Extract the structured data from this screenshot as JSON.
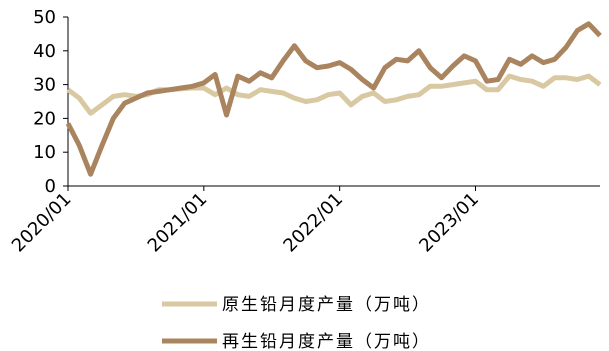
{
  "chart_data": {
    "type": "line",
    "title": "",
    "xlabel": "",
    "ylabel": "",
    "ylim": [
      0,
      50
    ],
    "y_ticks": [
      0,
      10,
      20,
      30,
      40,
      50
    ],
    "x_tick_labels": [
      "2020/01",
      "2021/01",
      "2022/01",
      "2023/01"
    ],
    "x": [
      "2020/01",
      "2020/02",
      "2020/03",
      "2020/04",
      "2020/05",
      "2020/06",
      "2020/07",
      "2020/08",
      "2020/09",
      "2020/10",
      "2020/11",
      "2020/12",
      "2021/01",
      "2021/02",
      "2021/03",
      "2021/04",
      "2021/05",
      "2021/06",
      "2021/07",
      "2021/08",
      "2021/09",
      "2021/10",
      "2021/11",
      "2021/12",
      "2022/01",
      "2022/02",
      "2022/03",
      "2022/04",
      "2022/05",
      "2022/06",
      "2022/07",
      "2022/08",
      "2022/09",
      "2022/10",
      "2022/11",
      "2022/12",
      "2023/01",
      "2023/02",
      "2023/03",
      "2023/04",
      "2023/05",
      "2023/06",
      "2023/07",
      "2023/08",
      "2023/09",
      "2023/10",
      "2023/11",
      "2023/12"
    ],
    "series": [
      {
        "name": "原生铅月度产量（万吨）",
        "color": "#d9c9a3",
        "values": [
          28.5,
          26,
          21.5,
          24,
          26.5,
          27,
          26.5,
          27,
          28.5,
          28.5,
          28.8,
          29,
          29,
          27,
          29,
          27,
          26.5,
          28.5,
          28,
          27.5,
          26,
          25,
          25.5,
          27,
          27.5,
          24,
          26.5,
          27.5,
          25,
          25.5,
          26.5,
          27,
          29.5,
          29.5,
          30,
          30.5,
          31,
          28.5,
          28.5,
          32.5,
          31.5,
          31,
          29.5,
          32,
          32,
          31.5,
          32.5,
          30
        ]
      },
      {
        "name": "再生铅月度产量（万吨）",
        "color": "#a9845e",
        "values": [
          18.5,
          12,
          3.5,
          12,
          20,
          24.5,
          26,
          27.5,
          28,
          28.5,
          29,
          29.5,
          30.5,
          33,
          21,
          32.5,
          31,
          33.5,
          32,
          37,
          41.5,
          37,
          35,
          35.5,
          36.5,
          34.5,
          31.5,
          29,
          35,
          37.5,
          37,
          40,
          35,
          32,
          35.5,
          38.5,
          37,
          31,
          31.5,
          37.5,
          36,
          38.5,
          36.5,
          37.5,
          41,
          46,
          48,
          44.5
        ]
      }
    ],
    "grid": false,
    "legend_position": "bottom"
  }
}
